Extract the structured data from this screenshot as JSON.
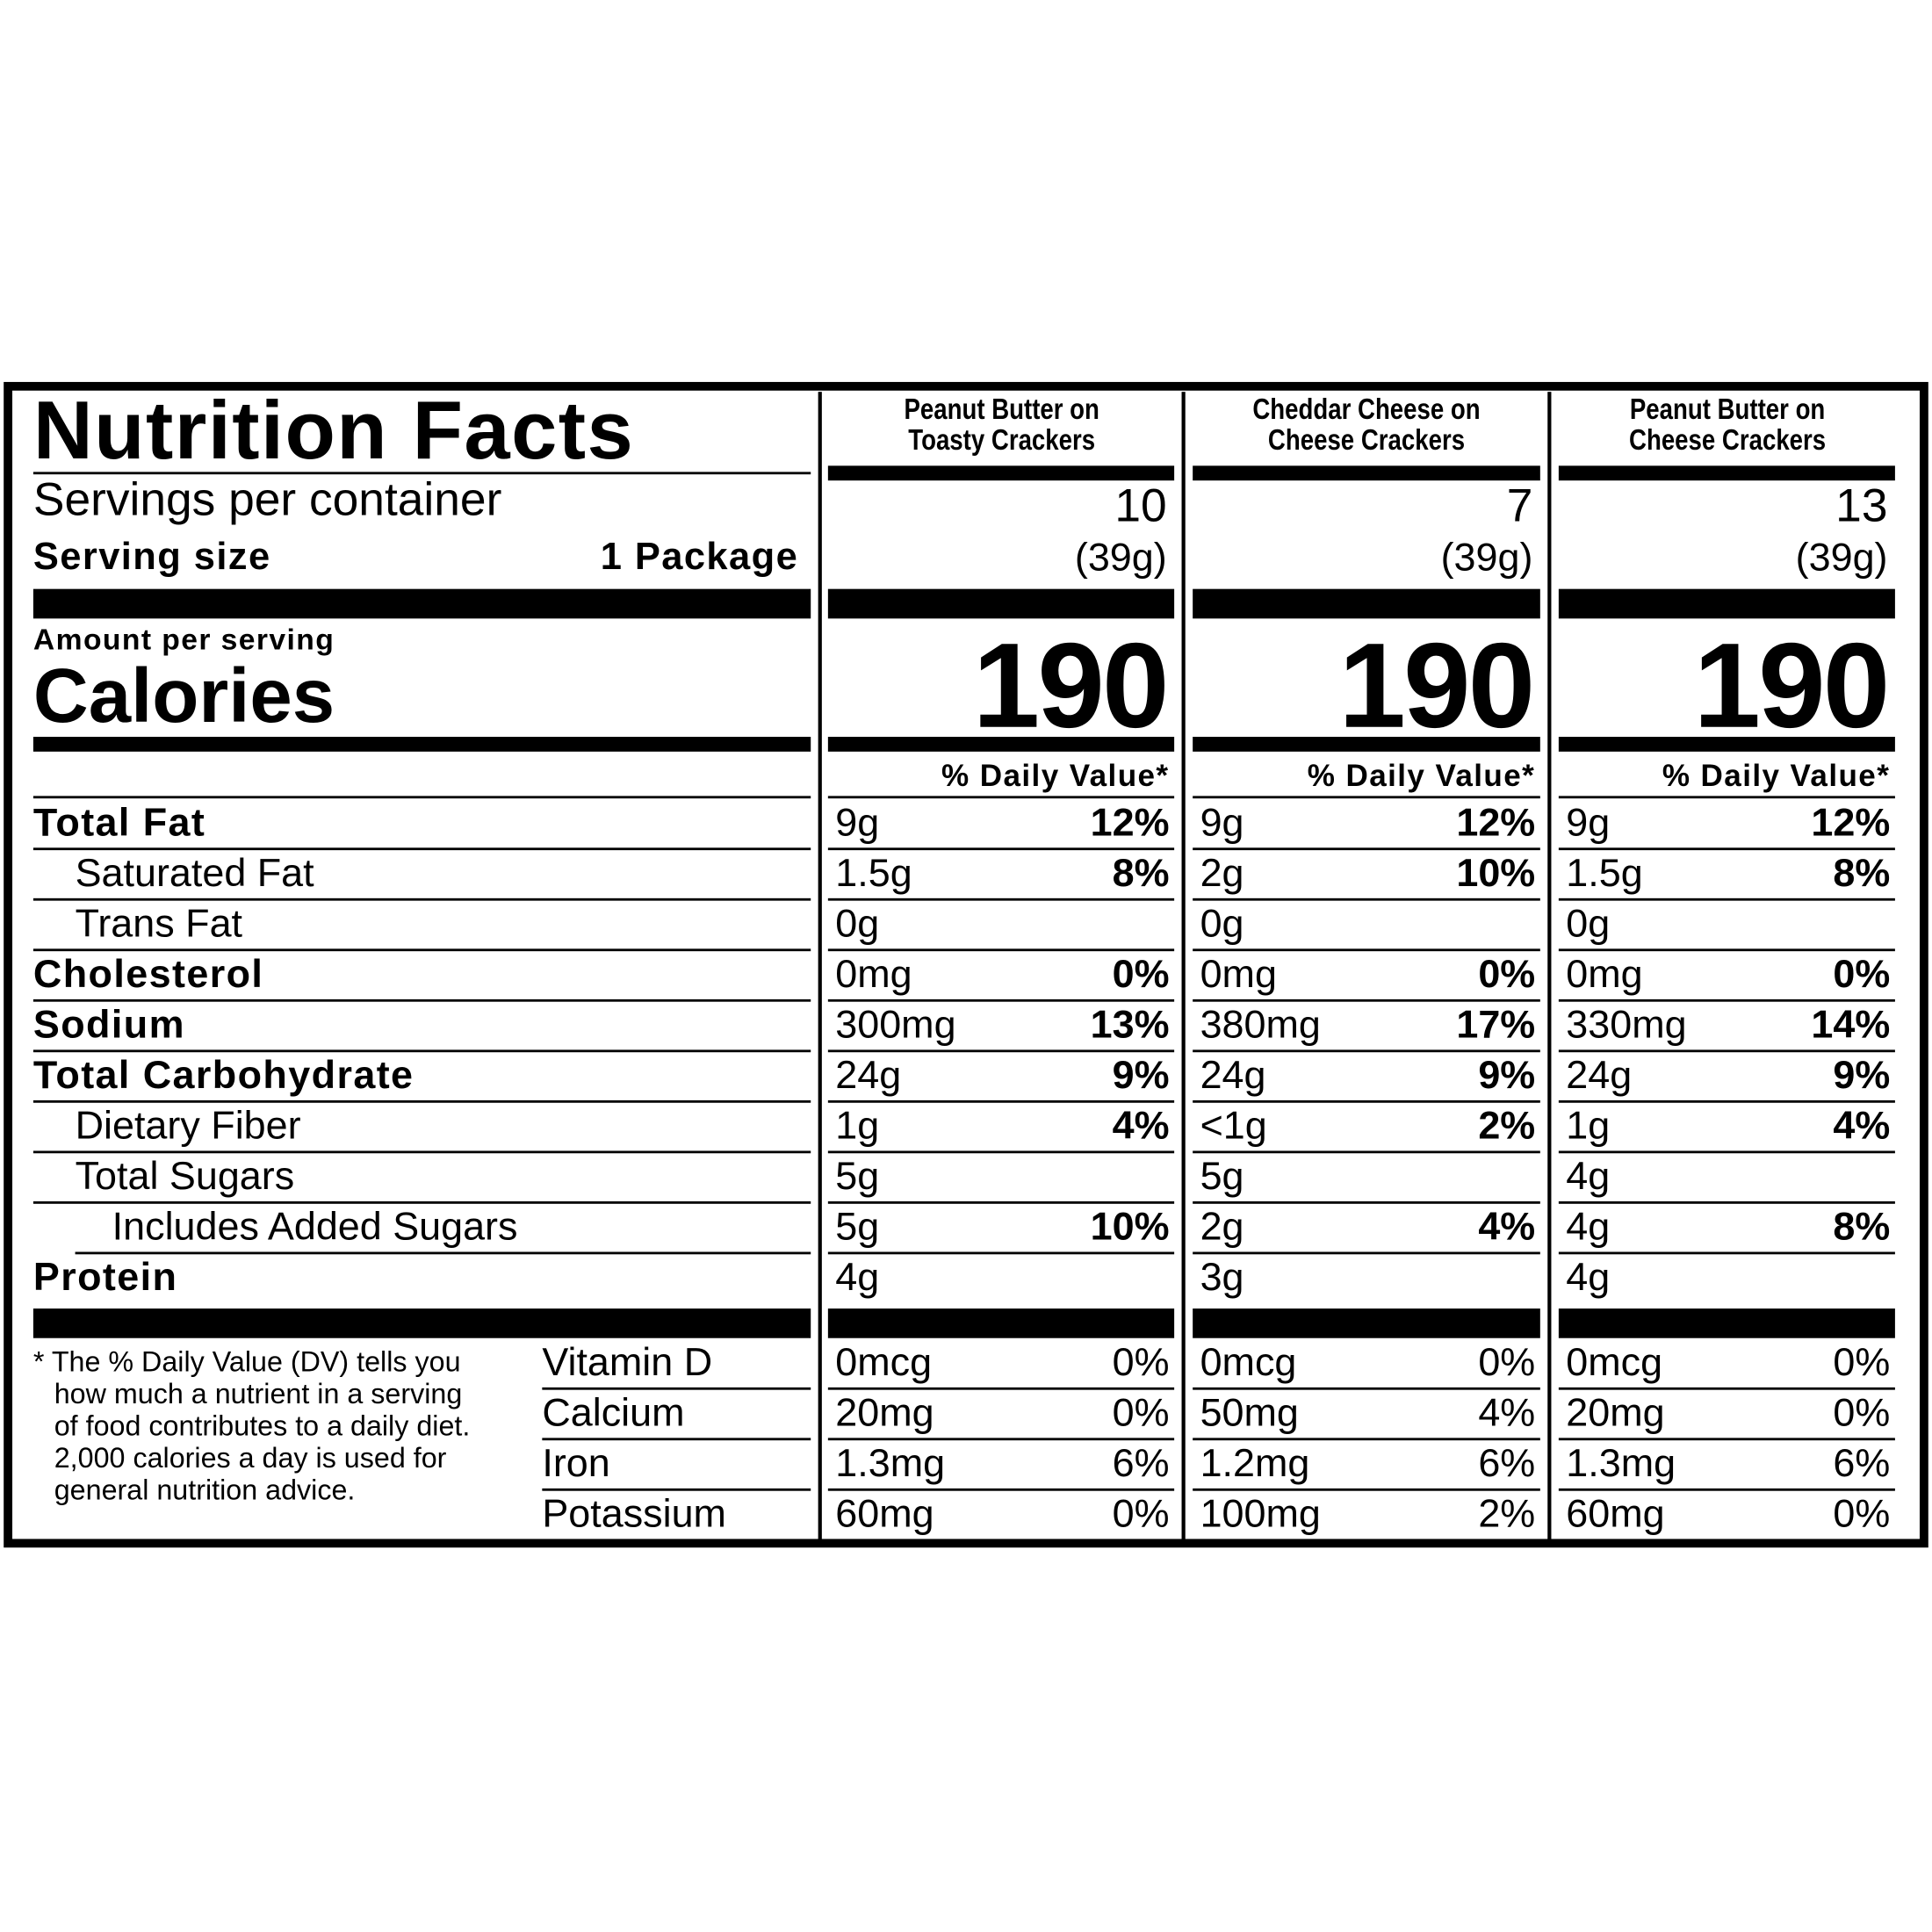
{
  "header": {
    "title": "Nutrition Facts",
    "servings_label": "Servings per container",
    "serving_size_label": "Serving size",
    "serving_size": "1 Package",
    "amount_per_serving": "Amount per serving",
    "calories_label": "Calories",
    "daily_value_label": "% Daily Value*"
  },
  "nutrients": [
    "Total Fat",
    "Saturated Fat",
    "Trans Fat",
    "Cholesterol",
    "Sodium",
    "Total Carbohydrate",
    "Dietary Fiber",
    "Total Sugars",
    "Includes Added Sugars",
    "Protein"
  ],
  "vitamins": [
    "Vitamin D",
    "Calcium",
    "Iron",
    "Potassium"
  ],
  "footnote": [
    "* The % Daily Value (DV) tells you",
    "how much a nutrient in a serving",
    "of food contributes to a daily diet.",
    "2,000 calories a day is used for",
    "general nutrition advice."
  ],
  "products": [
    {
      "name_lines": [
        "Peanut Butter on",
        "Toasty Crackers"
      ],
      "servings": "10",
      "serving_weight": "(39g)",
      "calories": "190",
      "nutrients": [
        [
          "9g",
          "12%"
        ],
        [
          "1.5g",
          "8%"
        ],
        [
          "0g"
        ],
        [
          "0mg",
          "0%"
        ],
        [
          "300mg",
          "13%"
        ],
        [
          "24g",
          "9%"
        ],
        [
          "1g",
          "4%"
        ],
        [
          "5g"
        ],
        [
          "5g",
          "10%"
        ],
        [
          "4g"
        ]
      ],
      "vitamins": [
        [
          "0mcg",
          "0%"
        ],
        [
          "20mg",
          "0%"
        ],
        [
          "1.3mg",
          "6%"
        ],
        [
          "60mg",
          "0%"
        ]
      ]
    },
    {
      "name_lines": [
        "Cheddar Cheese on",
        "Cheese Crackers"
      ],
      "servings": "7",
      "serving_weight": "(39g)",
      "calories": "190",
      "nutrients": [
        [
          "9g",
          "12%"
        ],
        [
          "2g",
          "10%"
        ],
        [
          "0g"
        ],
        [
          "0mg",
          "0%"
        ],
        [
          "380mg",
          "17%"
        ],
        [
          "24g",
          "9%"
        ],
        [
          "<1g",
          "2%"
        ],
        [
          "5g"
        ],
        [
          "2g",
          "4%"
        ],
        [
          "3g"
        ]
      ],
      "vitamins": [
        [
          "0mcg",
          "0%"
        ],
        [
          "50mg",
          "4%"
        ],
        [
          "1.2mg",
          "6%"
        ],
        [
          "100mg",
          "2%"
        ]
      ]
    },
    {
      "name_lines": [
        "Peanut Butter on",
        "Cheese Crackers"
      ],
      "servings": "13",
      "serving_weight": "(39g)",
      "calories": "190",
      "nutrients": [
        [
          "9g",
          "12%"
        ],
        [
          "1.5g",
          "8%"
        ],
        [
          "0g"
        ],
        [
          "0mg",
          "0%"
        ],
        [
          "330mg",
          "14%"
        ],
        [
          "24g",
          "9%"
        ],
        [
          "1g",
          "4%"
        ],
        [
          "4g"
        ],
        [
          "4g",
          "8%"
        ],
        [
          "4g"
        ]
      ],
      "vitamins": [
        [
          "0mcg",
          "0%"
        ],
        [
          "20mg",
          "0%"
        ],
        [
          "1.3mg",
          "6%"
        ],
        [
          "60mg",
          "0%"
        ]
      ]
    }
  ]
}
